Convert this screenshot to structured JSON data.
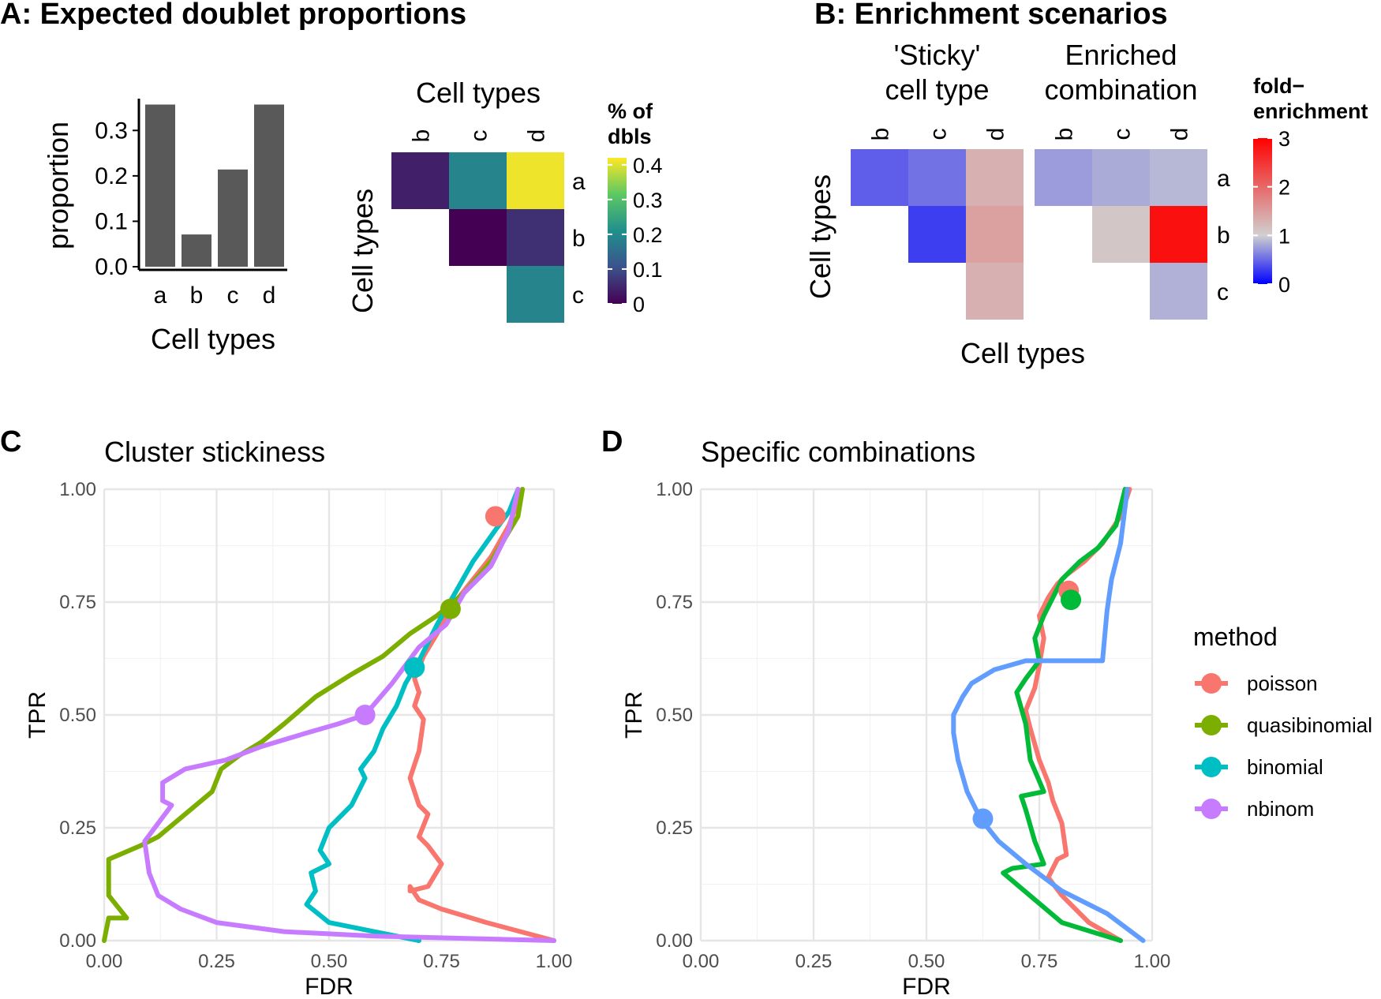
{
  "panels": {
    "A_title": "A: Expected doublet proportions",
    "B_title": "B: Enrichment scenarios",
    "C_label": "C",
    "D_label": "D"
  },
  "chart_data": [
    {
      "id": "A-bar",
      "type": "bar",
      "categories": [
        "a",
        "b",
        "c",
        "d"
      ],
      "values": [
        0.357,
        0.071,
        0.214,
        0.357
      ],
      "xlabel": "Cell types",
      "ylabel": "proportion",
      "ylim": [
        0,
        0.37
      ],
      "yticks": [
        "0.0",
        "0.1",
        "0.2",
        "0.3"
      ],
      "bar_color": "#595959"
    },
    {
      "id": "A-heatmap",
      "type": "heatmap",
      "title": "Cell types",
      "xlabel": "",
      "ylabel": "Cell types",
      "cols": [
        "b",
        "c",
        "d"
      ],
      "rows": [
        "a",
        "b",
        "c"
      ],
      "cells": [
        {
          "row": "a",
          "col": "b",
          "value": 0.04
        },
        {
          "row": "a",
          "col": "c",
          "value": 0.19
        },
        {
          "row": "a",
          "col": "d",
          "value": 0.41
        },
        {
          "row": "b",
          "col": "c",
          "value": 0.0
        },
        {
          "row": "b",
          "col": "d",
          "value": 0.06
        },
        {
          "row": "c",
          "col": "d",
          "value": 0.19
        }
      ],
      "legend_title": [
        "% of",
        "dbls"
      ],
      "legend_ticks": [
        "0.4",
        "0.3",
        "0.2",
        "0.1",
        "0"
      ],
      "colorscale": "viridis",
      "range": [
        0,
        0.42
      ]
    },
    {
      "id": "B-heatmap",
      "type": "heatmap",
      "xlabel": "Cell types",
      "ylabel": "Cell types",
      "facets": [
        {
          "title": [
            "'Sticky'",
            "cell type"
          ],
          "cols": [
            "b",
            "c",
            "d"
          ],
          "rows": [
            "a",
            "b",
            "c"
          ],
          "cells": [
            {
              "row": "a",
              "col": "b",
              "value": 0.45
            },
            {
              "row": "a",
              "col": "c",
              "value": 0.55
            },
            {
              "row": "a",
              "col": "d",
              "value": 1.3
            },
            {
              "row": "b",
              "col": "c",
              "value": 0.3
            },
            {
              "row": "b",
              "col": "d",
              "value": 1.45
            },
            {
              "row": "c",
              "col": "d",
              "value": 1.3
            }
          ]
        },
        {
          "title": [
            "Enriched",
            "combination"
          ],
          "cols": [
            "b",
            "c",
            "d"
          ],
          "rows": [
            "a",
            "b",
            "c"
          ],
          "cells": [
            {
              "row": "a",
              "col": "b",
              "value": 0.75
            },
            {
              "row": "a",
              "col": "c",
              "value": 0.82
            },
            {
              "row": "a",
              "col": "d",
              "value": 0.88
            },
            {
              "row": "b",
              "col": "c",
              "value": 1.1
            },
            {
              "row": "b",
              "col": "d",
              "value": 2.85
            },
            {
              "row": "c",
              "col": "d",
              "value": 0.85
            }
          ]
        }
      ],
      "legend_title": [
        "fold−",
        "enrichment"
      ],
      "legend_ticks": [
        "3",
        "2",
        "1",
        "0"
      ],
      "colorscale": [
        "#0000ff",
        "#d0d0d0",
        "#ff0000"
      ],
      "range": [
        0,
        3
      ],
      "midpoint": 1
    },
    {
      "id": "C-line",
      "type": "line",
      "title": "Cluster stickiness",
      "xlabel": "FDR",
      "ylabel": "TPR",
      "xlim": [
        0,
        1
      ],
      "ylim": [
        0,
        1
      ],
      "ticks": [
        "0.00",
        "0.25",
        "0.50",
        "0.75",
        "1.00"
      ],
      "grid": true,
      "series": [
        {
          "name": "poisson",
          "color": "#F8766D",
          "x": [
            1.0,
            0.85,
            0.75,
            0.7,
            0.68,
            0.68,
            0.72,
            0.75,
            0.72,
            0.7,
            0.72,
            0.7,
            0.68,
            0.7,
            0.71,
            0.69,
            0.7,
            0.69,
            0.71,
            0.74,
            0.78,
            0.82,
            0.86,
            0.9,
            0.93
          ],
          "y": [
            0.0,
            0.04,
            0.07,
            0.09,
            0.12,
            0.11,
            0.12,
            0.17,
            0.21,
            0.23,
            0.28,
            0.3,
            0.36,
            0.42,
            0.49,
            0.52,
            0.55,
            0.58,
            0.63,
            0.68,
            0.75,
            0.8,
            0.85,
            0.92,
            1.0
          ],
          "point": [
            0.87,
            0.94
          ]
        },
        {
          "name": "quasibinomial",
          "color": "#7CAE00",
          "x": [
            0.0,
            0.01,
            0.03,
            0.05,
            0.01,
            0.01,
            0.08,
            0.12,
            0.18,
            0.24,
            0.26,
            0.3,
            0.35,
            0.4,
            0.47,
            0.55,
            0.62,
            0.68,
            0.74,
            0.8,
            0.86,
            0.92,
            0.93
          ],
          "y": [
            0.0,
            0.05,
            0.05,
            0.05,
            0.1,
            0.18,
            0.21,
            0.23,
            0.28,
            0.33,
            0.38,
            0.41,
            0.44,
            0.48,
            0.54,
            0.59,
            0.63,
            0.68,
            0.72,
            0.77,
            0.84,
            0.94,
            1.0
          ],
          "point": [
            0.77,
            0.735
          ]
        },
        {
          "name": "binomial",
          "color": "#00BFC4",
          "x": [
            0.7,
            0.6,
            0.5,
            0.45,
            0.47,
            0.46,
            0.5,
            0.48,
            0.5,
            0.55,
            0.58,
            0.57,
            0.6,
            0.62,
            0.65,
            0.67,
            0.7,
            0.74,
            0.78,
            0.82,
            0.87,
            0.9,
            0.92
          ],
          "y": [
            0.0,
            0.02,
            0.04,
            0.08,
            0.11,
            0.15,
            0.17,
            0.2,
            0.25,
            0.3,
            0.36,
            0.38,
            0.42,
            0.47,
            0.52,
            0.57,
            0.62,
            0.7,
            0.77,
            0.84,
            0.91,
            0.95,
            1.0
          ],
          "point": [
            0.69,
            0.605
          ]
        },
        {
          "name": "nbinom",
          "color": "#C77CFF",
          "x": [
            1.0,
            0.6,
            0.4,
            0.25,
            0.17,
            0.12,
            0.1,
            0.09,
            0.12,
            0.15,
            0.13,
            0.13,
            0.18,
            0.27,
            0.35,
            0.45,
            0.52,
            0.58,
            0.64,
            0.7,
            0.76,
            0.8,
            0.86,
            0.9,
            0.92
          ],
          "y": [
            0.0,
            0.01,
            0.02,
            0.04,
            0.07,
            0.1,
            0.15,
            0.22,
            0.26,
            0.3,
            0.31,
            0.35,
            0.38,
            0.4,
            0.43,
            0.46,
            0.48,
            0.5,
            0.57,
            0.65,
            0.7,
            0.77,
            0.83,
            0.91,
            1.0
          ],
          "point": [
            0.58,
            0.5
          ]
        }
      ]
    },
    {
      "id": "D-line",
      "type": "line",
      "title": "Specific combinations",
      "xlabel": "FDR",
      "ylabel": "TPR",
      "xlim": [
        0,
        1
      ],
      "ylim": [
        0,
        1
      ],
      "ticks": [
        "0.00",
        "0.25",
        "0.50",
        "0.75",
        "1.00"
      ],
      "grid": true,
      "legend": {
        "title": "method",
        "position": "right"
      },
      "series": [
        {
          "name": "poisson",
          "color": "#F8766D",
          "x": [
            0.93,
            0.86,
            0.8,
            0.77,
            0.79,
            0.81,
            0.8,
            0.78,
            0.77,
            0.75,
            0.73,
            0.72,
            0.74,
            0.75,
            0.76,
            0.75,
            0.77,
            0.79,
            0.81,
            0.85,
            0.89,
            0.93,
            0.95
          ],
          "y": [
            0.0,
            0.04,
            0.1,
            0.14,
            0.18,
            0.19,
            0.26,
            0.31,
            0.35,
            0.4,
            0.47,
            0.51,
            0.56,
            0.61,
            0.67,
            0.72,
            0.76,
            0.79,
            0.81,
            0.84,
            0.88,
            0.94,
            1.0
          ],
          "point": [
            0.815,
            0.775
          ]
        },
        {
          "name": "quasibinomial",
          "color": "#00BA38",
          "x": [
            0.93,
            0.8,
            0.67,
            0.69,
            0.76,
            0.74,
            0.72,
            0.71,
            0.76,
            0.73,
            0.72,
            0.7,
            0.72,
            0.75,
            0.74,
            0.76,
            0.78,
            0.8,
            0.84,
            0.88,
            0.92,
            0.94
          ],
          "y": [
            0.0,
            0.04,
            0.15,
            0.16,
            0.17,
            0.22,
            0.29,
            0.32,
            0.33,
            0.4,
            0.48,
            0.55,
            0.58,
            0.62,
            0.67,
            0.72,
            0.76,
            0.8,
            0.84,
            0.87,
            0.92,
            1.0
          ],
          "point": [
            0.82,
            0.755
          ]
        },
        {
          "name": "binomial",
          "color": "#619CFF",
          "x": [
            0.98,
            0.9,
            0.8,
            0.72,
            0.66,
            0.62,
            0.59,
            0.57,
            0.56,
            0.56,
            0.58,
            0.6,
            0.65,
            0.72,
            0.77,
            0.78,
            0.89,
            0.9,
            0.91,
            0.93,
            0.945
          ],
          "y": [
            0.0,
            0.06,
            0.11,
            0.17,
            0.22,
            0.27,
            0.33,
            0.4,
            0.46,
            0.5,
            0.54,
            0.57,
            0.6,
            0.62,
            0.62,
            0.62,
            0.62,
            0.73,
            0.8,
            0.88,
            1.0
          ],
          "point": [
            0.625,
            0.27
          ]
        }
      ]
    }
  ]
}
